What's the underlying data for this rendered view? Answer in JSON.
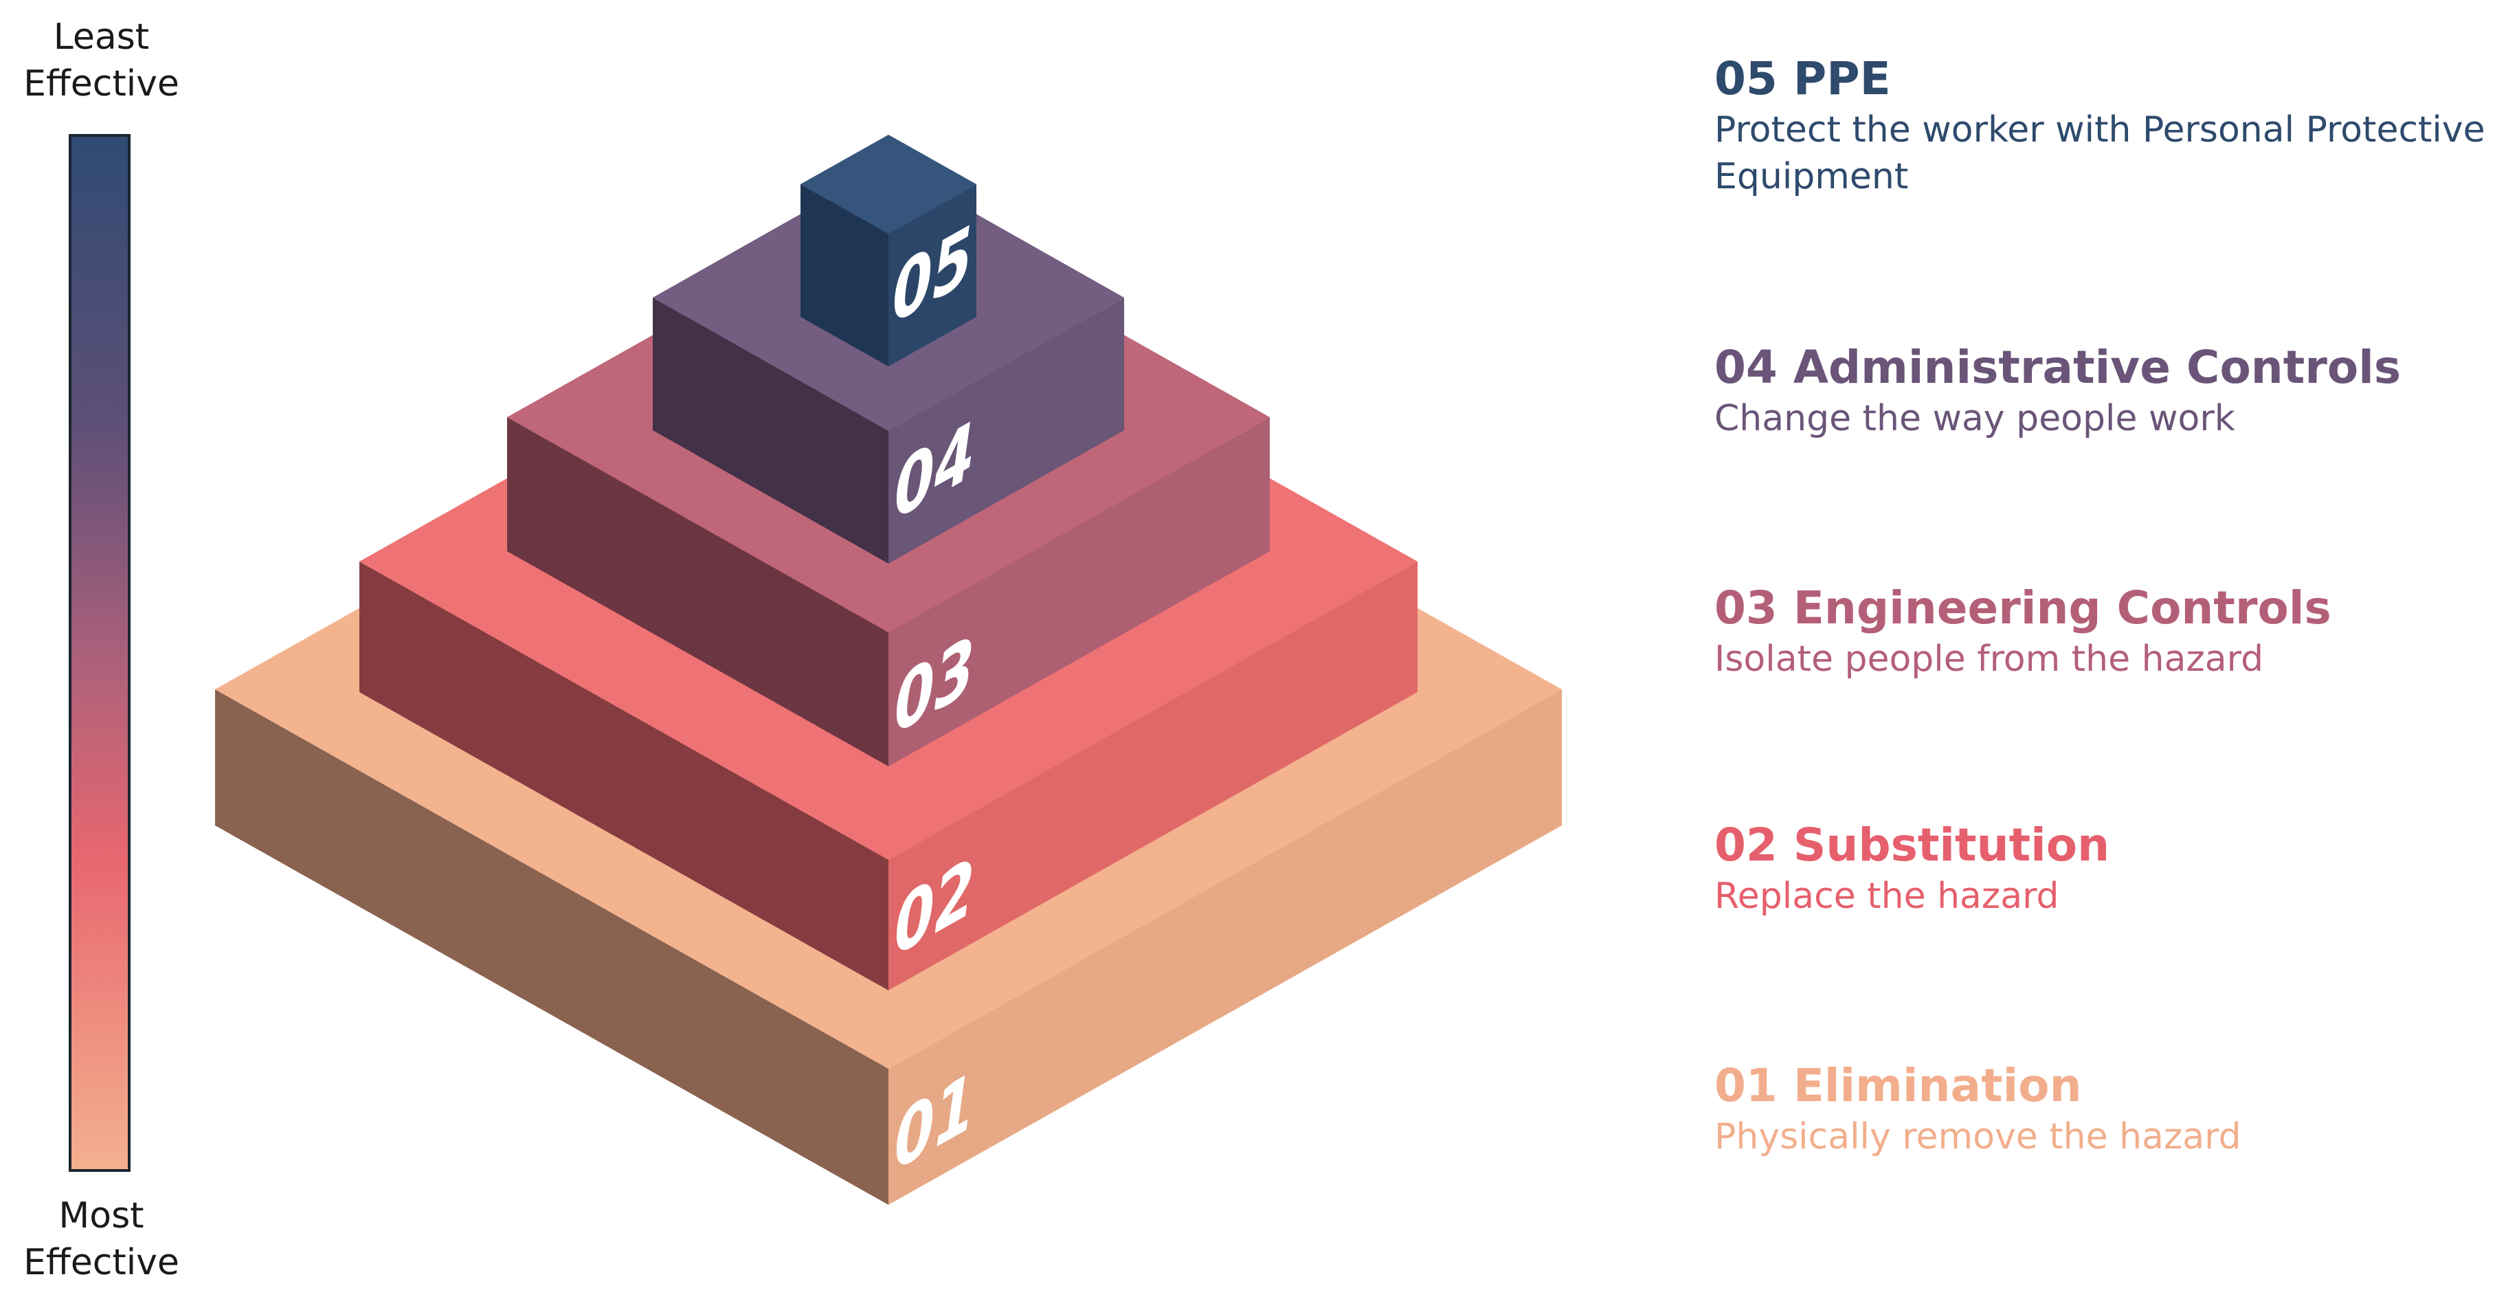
{
  "scale": {
    "top_line1": "Least",
    "top_line2": "Effective",
    "bottom_line1": "Most",
    "bottom_line2": "Effective"
  },
  "layers": [
    {
      "number": "01",
      "title": "01 Elimination",
      "description": "Physically remove the hazard",
      "color": "#f4b28f"
    },
    {
      "number": "02",
      "title": "02 Substitution",
      "description": "Replace the hazard",
      "color": "#ef7273"
    },
    {
      "number": "03",
      "title": "03 Engineering Controls",
      "description": "Isolate people from the hazard",
      "color": "#c06678"
    },
    {
      "number": "04",
      "title": "04 Administrative Controls",
      "description": "Change the way people work",
      "color": "#6e5a7e"
    },
    {
      "number": "05",
      "title": "05 PPE",
      "description": "Protect the worker with Personal Protective Equipment",
      "color": "#35557e"
    }
  ]
}
